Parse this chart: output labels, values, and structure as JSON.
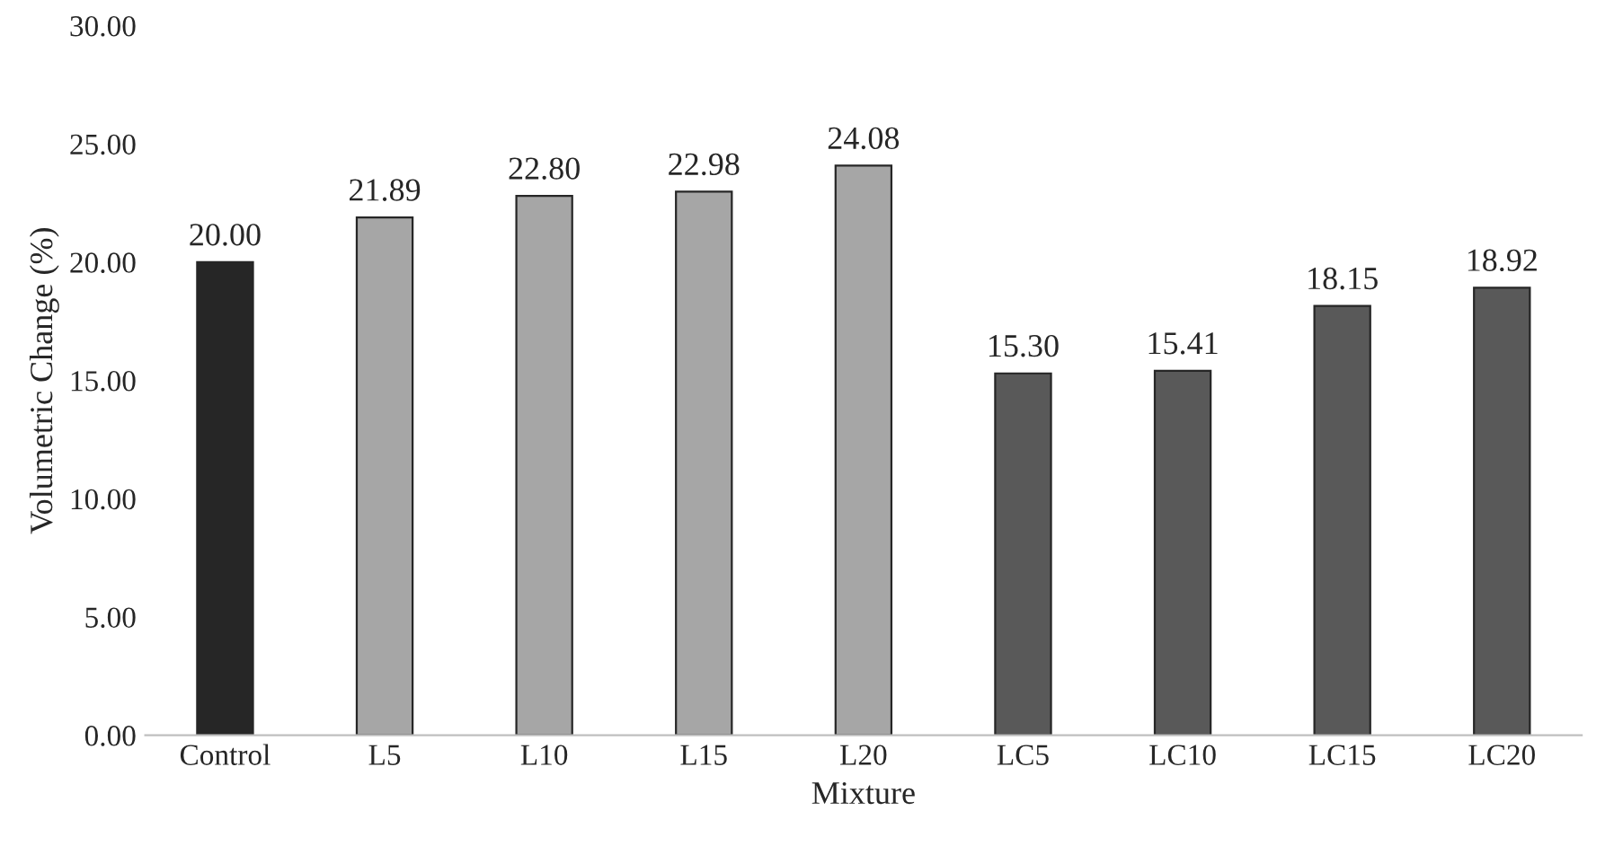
{
  "chart_data": {
    "type": "bar",
    "xlabel": "Mixture",
    "ylabel": "Volumetric Change (%)",
    "categories": [
      "Control",
      "L5",
      "L10",
      "L15",
      "L20",
      "LC5",
      "LC10",
      "LC15",
      "LC20"
    ],
    "values": [
      20.0,
      21.89,
      22.8,
      22.98,
      24.08,
      15.3,
      15.41,
      18.15,
      18.92
    ],
    "value_labels": [
      "20.00",
      "21.89",
      "22.80",
      "22.98",
      "24.08",
      "15.30",
      "15.41",
      "18.15",
      "18.92"
    ],
    "colors": [
      "#262626",
      "#a6a6a6",
      "#a6a6a6",
      "#a6a6a6",
      "#a6a6a6",
      "#595959",
      "#595959",
      "#595959",
      "#595959"
    ],
    "ylim": [
      0,
      30
    ],
    "yticks": [
      {
        "value": 0,
        "label": "0.00"
      },
      {
        "value": 5,
        "label": "5.00"
      },
      {
        "value": 10,
        "label": "10.00"
      },
      {
        "value": 15,
        "label": "15.00"
      },
      {
        "value": 20,
        "label": "20.00"
      },
      {
        "value": 25,
        "label": "25.00"
      },
      {
        "value": 30,
        "label": "30.00"
      }
    ],
    "grid": false,
    "legend": false
  }
}
